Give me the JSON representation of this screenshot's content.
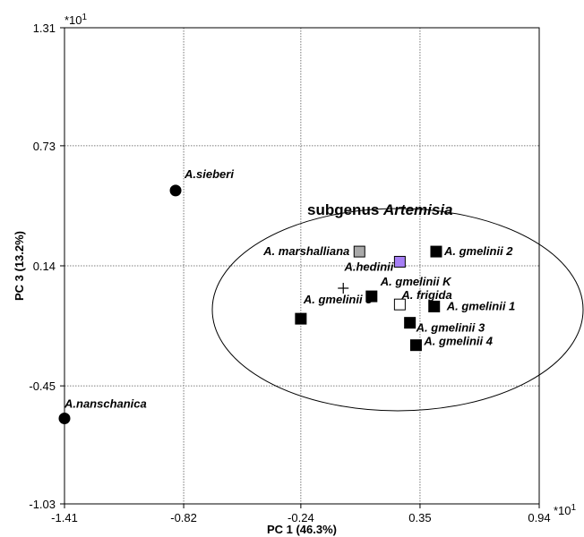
{
  "chart_data": {
    "type": "scatter",
    "xlabel": "PC 1 (46.3%)",
    "ylabel": "PC 3 (13.2%)",
    "x_scale_note": "*10",
    "y_scale_note": "*10",
    "scale_exponent": "1",
    "xlim": [
      -1.41,
      0.94
    ],
    "ylim": [
      -1.03,
      1.31
    ],
    "x_ticks": [
      {
        "value": -1.41,
        "label": "-1.41"
      },
      {
        "value": -0.82,
        "label": "-0.82"
      },
      {
        "value": -0.24,
        "label": "-0.24"
      },
      {
        "value": 0.35,
        "label": "0.35"
      },
      {
        "value": 0.94,
        "label": "0.94"
      }
    ],
    "y_ticks": [
      {
        "value": 1.31,
        "label": "1.31"
      },
      {
        "value": 0.73,
        "label": "0.73"
      },
      {
        "value": 0.14,
        "label": "0.14"
      },
      {
        "value": -0.45,
        "label": "-0.45"
      },
      {
        "value": -1.03,
        "label": "-1.03"
      }
    ],
    "grid": true,
    "group_label_prefix": "subgenus ",
    "group_label_name": "Artemisia",
    "centroid": {
      "x": -0.03,
      "y": 0.03
    },
    "points": [
      {
        "label": "A.sieberi",
        "x": -0.86,
        "y": 0.51,
        "marker": "circle",
        "color": "#000000"
      },
      {
        "label": "A.nanschanica",
        "x": -1.41,
        "y": -0.61,
        "marker": "circle",
        "color": "#000000"
      },
      {
        "label": "A. marshalliana",
        "x": 0.05,
        "y": 0.21,
        "marker": "square",
        "color": "#a9a9a9"
      },
      {
        "label": "A.hedinii",
        "x": 0.25,
        "y": 0.16,
        "marker": "square",
        "color": "#a67ff5"
      },
      {
        "label": "A. gmelinii 2",
        "x": 0.43,
        "y": 0.21,
        "marker": "square",
        "color": "#000000"
      },
      {
        "label": "A. gmelinii K",
        "x": 0.11,
        "y": -0.01,
        "marker": "square",
        "color": "#000000"
      },
      {
        "label": "A. frigida",
        "x": 0.25,
        "y": -0.05,
        "marker": "square",
        "color": "#ffffff"
      },
      {
        "label": "A. gmelinii 1",
        "x": 0.42,
        "y": -0.06,
        "marker": "square",
        "color": "#000000"
      },
      {
        "label": "A. gmelinii 5",
        "x": -0.24,
        "y": -0.12,
        "marker": "square",
        "color": "#000000"
      },
      {
        "label": "A. gmelinii 3",
        "x": 0.3,
        "y": -0.14,
        "marker": "square",
        "color": "#000000"
      },
      {
        "label": "A. gmelinii 4",
        "x": 0.33,
        "y": -0.25,
        "marker": "square",
        "color": "#000000"
      }
    ]
  }
}
